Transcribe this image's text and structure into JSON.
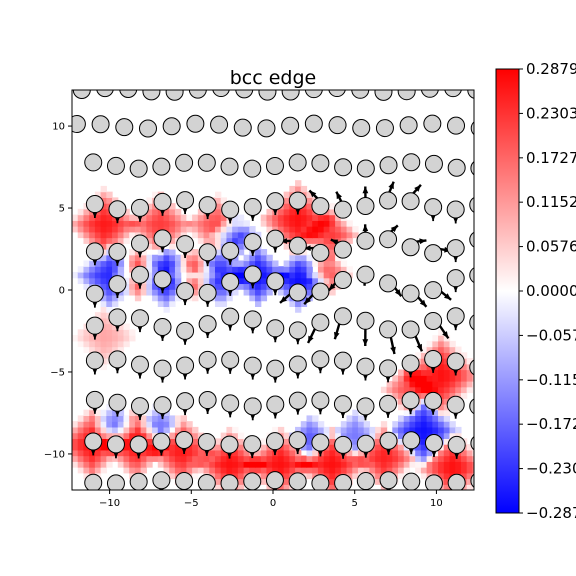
{
  "chart_data": {
    "type": "heatmap",
    "title": "bcc edge",
    "xlabel": "",
    "ylabel": "",
    "xlim": [
      -12.3,
      12.3
    ],
    "ylim": [
      -12.2,
      12.2
    ],
    "x_ticks": [
      -10,
      -5,
      0,
      5,
      10
    ],
    "x_tick_labels": [
      "−10",
      "−5",
      "0",
      "5",
      "10"
    ],
    "y_ticks": [
      10,
      5,
      0,
      -5,
      -10
    ],
    "y_tick_labels": [
      "10",
      "5",
      "0",
      "−5",
      "−10"
    ],
    "colormap": "bwr",
    "colors": {
      "low": "#0000ff",
      "mid": "#ffffff",
      "high": "#ff0000",
      "atom_fill": "#d3d3d3",
      "atom_edge": "#000000"
    },
    "colorbar": {
      "min": -0.2879,
      "max": 0.2879,
      "ticks": [
        0.2879,
        0.2303,
        0.1727,
        0.1152,
        0.0576,
        0.0,
        -0.0576,
        -0.1152,
        -0.1727,
        -0.2303,
        -0.2879
      ],
      "tick_labels": [
        "0.2879",
        "0.2303",
        "0.1727",
        "0.1152",
        "0.0576",
        "0.0000",
        "−0.0576",
        "−0.1152",
        "−0.1727",
        "−0.2303",
        "−0.2879"
      ]
    },
    "atom_rows": [
      {
        "y": 12.2,
        "x0": -11.7,
        "dx": 1.42,
        "n": 18,
        "wave": 0.12
      },
      {
        "y": 10.0,
        "x0": -12.0,
        "dx": 1.45,
        "n": 18,
        "wave": 0.15
      },
      {
        "y": 7.6,
        "x0": -11.0,
        "dx": 1.39,
        "n": 18,
        "wave": 0.2
      },
      {
        "y": 5.2,
        "x0": -10.9,
        "dx": 1.38,
        "n": 18,
        "wave": 0.3
      },
      {
        "y": 2.7,
        "x0": -10.9,
        "dx": 1.38,
        "n": 18,
        "wave": 0.45
      },
      {
        "y": 0.35,
        "x0": -10.9,
        "dx": 1.38,
        "n": 18,
        "wave": 0.6
      },
      {
        "y": -2.05,
        "x0": -10.9,
        "dx": 1.38,
        "n": 18,
        "wave": 0.45
      },
      {
        "y": -4.5,
        "x0": -10.9,
        "dx": 1.38,
        "n": 18,
        "wave": 0.3
      },
      {
        "y": -6.9,
        "x0": -10.9,
        "dx": 1.38,
        "n": 18,
        "wave": 0.2
      },
      {
        "y": -9.3,
        "x0": -11.0,
        "dx": 1.39,
        "n": 18,
        "wave": 0.15
      },
      {
        "y": -11.7,
        "x0": -11.0,
        "dx": 1.39,
        "n": 18,
        "wave": 0.1
      }
    ],
    "strain_regions": [
      {
        "x": -10.3,
        "y": 4.0,
        "v": 0.26,
        "r": 1.5
      },
      {
        "x": -6.9,
        "y": 4.0,
        "v": 0.22,
        "r": 1.4
      },
      {
        "x": -3.5,
        "y": 4.0,
        "v": 0.2,
        "r": 1.3
      },
      {
        "x": 1.5,
        "y": 4.3,
        "v": 0.27,
        "r": 1.6
      },
      {
        "x": 3.5,
        "y": 3.4,
        "v": 0.22,
        "r": 1.2
      },
      {
        "x": -2.4,
        "y": 3.3,
        "v": -0.22,
        "r": 1.1
      },
      {
        "x": -10.0,
        "y": 0.9,
        "v": -0.24,
        "r": 1.4
      },
      {
        "x": -6.6,
        "y": 0.9,
        "v": -0.27,
        "r": 1.4
      },
      {
        "x": -3.2,
        "y": 0.9,
        "v": -0.24,
        "r": 1.3
      },
      {
        "x": -0.9,
        "y": 0.9,
        "v": -0.27,
        "r": 1.3
      },
      {
        "x": 1.6,
        "y": 0.6,
        "v": -0.27,
        "r": 1.3
      },
      {
        "x": -8.3,
        "y": 1.0,
        "v": 0.22,
        "r": 1.1
      },
      {
        "x": -4.9,
        "y": 1.0,
        "v": 0.22,
        "r": 1.1
      },
      {
        "x": 3.4,
        "y": 1.0,
        "v": 0.18,
        "r": 1.0
      },
      {
        "x": -10.3,
        "y": -2.8,
        "v": 0.1,
        "r": 1.3
      },
      {
        "x": 10.3,
        "y": -5.2,
        "v": 0.27,
        "r": 1.7
      },
      {
        "x": 8.4,
        "y": -6.0,
        "v": 0.2,
        "r": 1.2
      },
      {
        "x": -11.1,
        "y": -9.4,
        "v": 0.27,
        "r": 1.5
      },
      {
        "x": -8.4,
        "y": -9.4,
        "v": 0.27,
        "r": 1.5
      },
      {
        "x": -5.6,
        "y": -9.8,
        "v": 0.26,
        "r": 1.5
      },
      {
        "x": -2.6,
        "y": -10.6,
        "v": 0.27,
        "r": 1.5
      },
      {
        "x": 0.4,
        "y": -10.6,
        "v": 0.27,
        "r": 1.5
      },
      {
        "x": 3.6,
        "y": -10.6,
        "v": 0.27,
        "r": 1.5
      },
      {
        "x": 6.8,
        "y": -10.2,
        "v": 0.25,
        "r": 1.4
      },
      {
        "x": 9.2,
        "y": -8.6,
        "v": -0.27,
        "r": 1.5
      },
      {
        "x": 11.0,
        "y": -10.8,
        "v": 0.27,
        "r": 1.5
      },
      {
        "x": -9.7,
        "y": -8.3,
        "v": -0.15,
        "r": 1.0
      },
      {
        "x": -6.9,
        "y": -8.3,
        "v": -0.15,
        "r": 1.0
      },
      {
        "x": 2.3,
        "y": -9.0,
        "v": -0.18,
        "r": 1.0
      },
      {
        "x": 5.0,
        "y": -8.8,
        "v": -0.15,
        "r": 1.0
      }
    ],
    "displacement_field": {
      "core_x": 5.7,
      "core_y": 1.2
    }
  }
}
